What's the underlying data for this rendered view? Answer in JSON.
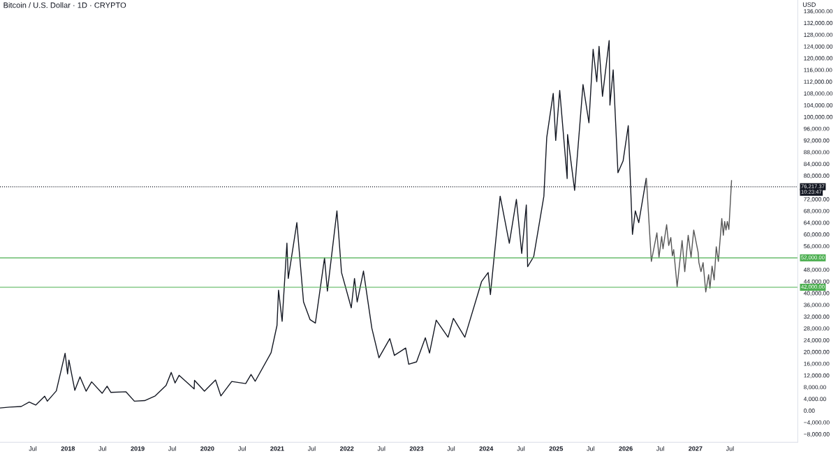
{
  "chart_data": {
    "type": "line",
    "title": "Bitcoin / U.S. Dollar · 1D · CRYPTO",
    "ylabel": "USD",
    "series": [
      {
        "color": "#131722",
        "values": [
          900,
          1200,
          1400,
          2900,
          1900,
          4900,
          3200,
          6700,
          19500,
          12500,
          17200,
          6900,
          11500,
          6600,
          9800,
          5900,
          8300,
          6200,
          6400,
          3200,
          3400,
          5000,
          8600,
          13000,
          9400,
          12000,
          7400,
          10300,
          6600,
          10400,
          5000,
          9900,
          9200,
          12300,
          10000,
          19700,
          29000,
          41000,
          30400,
          57000,
          45000,
          64000,
          37000,
          31000,
          29800,
          52000,
          40700,
          68000,
          47000,
          35000,
          45000,
          37000,
          47500,
          28000,
          18000,
          24500,
          18800,
          21300,
          15800,
          16600,
          24800,
          19600,
          30800,
          25000,
          31400,
          25000,
          44000,
          47000,
          39500,
          73000,
          57000,
          71900,
          53500,
          70000,
          49000,
          52500,
          73000,
          93000,
          108000,
          92000,
          109000,
          79000,
          94000,
          75000,
          111000,
          98000,
          123000,
          112000,
          124000,
          107000,
          126000,
          104000,
          116000,
          81000,
          85000,
          97000,
          60000,
          68000,
          64000,
          79000
        ],
        "x": [
          "2017-01-10",
          "2017-03-01",
          "2017-05-01",
          "2017-06-12",
          "2017-07-16",
          "2017-09-01",
          "2017-09-15",
          "2017-11-01",
          "2017-12-17",
          "2017-12-30",
          "2018-01-06",
          "2018-02-06",
          "2018-03-05",
          "2018-04-06",
          "2018-05-05",
          "2018-06-29",
          "2018-07-25",
          "2018-08-14",
          "2018-11-01",
          "2018-12-15",
          "2019-02-07",
          "2019-04-03",
          "2019-05-30",
          "2019-06-26",
          "2019-07-16",
          "2019-08-06",
          "2019-10-24",
          "2019-10-26",
          "2019-12-17",
          "2020-02-13",
          "2020-03-12",
          "2020-05-08",
          "2020-07-20",
          "2020-08-17",
          "2020-09-08",
          "2020-11-30",
          "2020-12-31",
          "2021-01-08",
          "2021-01-27",
          "2021-02-21",
          "2021-02-28",
          "2021-04-14",
          "2021-05-19",
          "2021-06-22",
          "2021-07-20",
          "2021-09-06",
          "2021-09-21",
          "2021-11-10",
          "2021-12-04",
          "2022-01-24",
          "2022-02-10",
          "2022-02-24",
          "2022-03-29",
          "2022-05-12",
          "2022-06-18",
          "2022-08-14",
          "2022-09-07",
          "2022-11-05",
          "2022-11-21",
          "2023-01-01",
          "2023-02-16",
          "2023-03-10",
          "2023-04-14",
          "2023-06-15",
          "2023-07-13",
          "2023-09-11",
          "2023-12-08",
          "2024-01-11",
          "2024-01-23",
          "2024-03-14",
          "2024-05-01",
          "2024-06-07",
          "2024-07-05",
          "2024-07-29",
          "2024-08-05",
          "2024-09-06",
          "2024-10-29",
          "2024-11-13",
          "2024-12-17",
          "2024-12-30",
          "2025-01-20",
          "2025-02-28",
          "2025-03-02",
          "2025-04-08",
          "2025-05-22",
          "2025-06-22",
          "2025-07-14",
          "2025-08-02",
          "2025-08-14",
          "2025-09-01",
          "2025-10-06",
          "2025-10-10",
          "2025-10-27",
          "2025-11-21",
          "2025-12-18",
          "2026-01-14",
          "2026-02-05",
          "2026-02-20",
          "2026-03-10",
          "2026-04-18"
        ]
      },
      {
        "color": "#555555",
        "values": [
          79000,
          50800,
          60500,
          52200,
          59300,
          55100,
          63300,
          56200,
          58900,
          52700,
          54800,
          42200,
          57900,
          47300,
          59700,
          52200,
          61500,
          53900,
          50400,
          47300,
          50400,
          40400,
          46300,
          41700,
          49200,
          44500,
          55800,
          50800,
          65400,
          59700,
          64400,
          61500,
          64400,
          61700,
          78300
        ],
        "x": [
          "2026-04-19",
          "2026-05-15",
          "2026-06-13",
          "2026-06-24",
          "2026-07-08",
          "2026-07-15",
          "2026-08-03",
          "2026-08-14",
          "2026-08-25",
          "2026-09-02",
          "2026-09-09",
          "2026-09-27",
          "2026-10-23",
          "2026-11-06",
          "2026-11-24",
          "2026-12-09",
          "2026-12-23",
          "2027-01-15",
          "2027-01-19",
          "2027-01-30",
          "2027-02-10",
          "2027-02-24",
          "2027-03-11",
          "2027-03-18",
          "2027-03-29",
          "2027-04-09",
          "2027-04-20",
          "2027-05-01",
          "2027-05-19",
          "2027-05-27",
          "2027-06-03",
          "2027-06-10",
          "2027-06-17",
          "2027-06-25",
          "2027-07-09"
        ]
      }
    ],
    "ref_lines": [
      {
        "axis": "y",
        "value": 76217.37,
        "label": "76,217.37",
        "color": "#131722",
        "line_style": "dotted"
      },
      {
        "axis": "y",
        "value": 52000,
        "label": "52,000.00",
        "color": "#4caf50",
        "line_style": "solid"
      },
      {
        "axis": "y",
        "value": 42000,
        "label": "42,000.00",
        "color": "#4caf50",
        "line_style": "solid"
      }
    ],
    "annotations": [
      "10:23:47"
    ],
    "xlim": [
      "2017-01-10",
      "2028-06-20"
    ],
    "xticks": [
      {
        "value": "2017-07-01",
        "label": "Jul"
      },
      {
        "value": "2018-01-01",
        "label": "2018"
      },
      {
        "value": "2018-07-01",
        "label": "Jul"
      },
      {
        "value": "2019-01-01",
        "label": "2019"
      },
      {
        "value": "2019-07-01",
        "label": "Jul"
      },
      {
        "value": "2020-01-01",
        "label": "2020"
      },
      {
        "value": "2020-07-01",
        "label": "Jul"
      },
      {
        "value": "2021-01-01",
        "label": "2021"
      },
      {
        "value": "2021-07-01",
        "label": "Jul"
      },
      {
        "value": "2022-01-01",
        "label": "2022"
      },
      {
        "value": "2022-07-01",
        "label": "Jul"
      },
      {
        "value": "2023-01-01",
        "label": "2023"
      },
      {
        "value": "2023-07-01",
        "label": "Jul"
      },
      {
        "value": "2024-01-01",
        "label": "2024"
      },
      {
        "value": "2024-07-01",
        "label": "Jul"
      },
      {
        "value": "2025-01-01",
        "label": "2025"
      },
      {
        "value": "2025-07-01",
        "label": "Jul"
      },
      {
        "value": "2026-01-01",
        "label": "2026"
      },
      {
        "value": "2026-07-01",
        "label": "Jul"
      },
      {
        "value": "2027-01-01",
        "label": "2027"
      },
      {
        "value": "2027-07-01",
        "label": "Jul"
      }
    ],
    "ylim": [
      -10800,
      139800
    ],
    "yticks": [
      {
        "value": -8000,
        "label": "−8,000.00"
      },
      {
        "value": -4000,
        "label": "−4,000.00"
      },
      {
        "value": 0,
        "label": "0.00"
      },
      {
        "value": 4000,
        "label": "4,000.00"
      },
      {
        "value": 8000,
        "label": "8,000.00"
      },
      {
        "value": 12000,
        "label": "12,000.00"
      },
      {
        "value": 16000,
        "label": "16,000.00"
      },
      {
        "value": 20000,
        "label": "20,000.00"
      },
      {
        "value": 24000,
        "label": "24,000.00"
      },
      {
        "value": 28000,
        "label": "28,000.00"
      },
      {
        "value": 32000,
        "label": "32,000.00"
      },
      {
        "value": 36000,
        "label": "36,000.00"
      },
      {
        "value": 40000,
        "label": "40,000.00"
      },
      {
        "value": 44000,
        "label": "44,000.00"
      },
      {
        "value": 48000,
        "label": "48,000.00"
      },
      {
        "value": 56000,
        "label": "56,000.00"
      },
      {
        "value": 60000,
        "label": "60,000.00"
      },
      {
        "value": 64000,
        "label": "64,000.00"
      },
      {
        "value": 68000,
        "label": "68,000.00"
      },
      {
        "value": 72000,
        "label": "72,000.00"
      },
      {
        "value": 80000,
        "label": "80,000.00"
      },
      {
        "value": 84000,
        "label": "84,000.00"
      },
      {
        "value": 88000,
        "label": "88,000.00"
      },
      {
        "value": 92000,
        "label": "92,000.00"
      },
      {
        "value": 96000,
        "label": "96,000.00"
      },
      {
        "value": 100000,
        "label": "100,000.00"
      },
      {
        "value": 104000,
        "label": "104,000.00"
      },
      {
        "value": 108000,
        "label": "108,000.00"
      },
      {
        "value": 112000,
        "label": "112,000.00"
      },
      {
        "value": 116000,
        "label": "116,000.00"
      },
      {
        "value": 120000,
        "label": "120,000.00"
      },
      {
        "value": 124000,
        "label": "124,000.00"
      },
      {
        "value": 128000,
        "label": "128,000.00"
      },
      {
        "value": 132000,
        "label": "132,000.00"
      },
      {
        "value": 136000,
        "label": "136,000.00"
      }
    ],
    "grid": false,
    "legend": false,
    "marker": "none",
    "line_style": "solid"
  }
}
